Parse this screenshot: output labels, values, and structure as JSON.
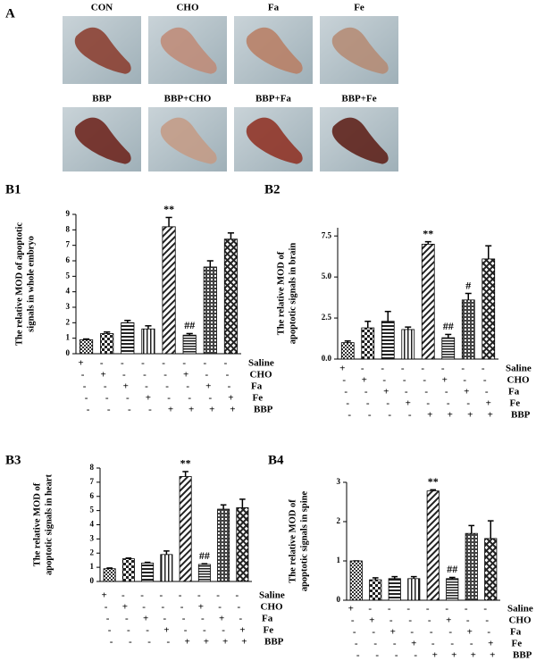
{
  "panel_a": {
    "label": "A",
    "images": [
      "CON",
      "CHO",
      "Fa",
      "Fe",
      "BBP",
      "BBP+CHO",
      "BBP+Fa",
      "BBP+Fe"
    ]
  },
  "treatments": {
    "names": [
      "Saline",
      "CHO",
      "Fa",
      "Fe",
      "BBP"
    ],
    "signs": [
      [
        "+",
        "-",
        "-",
        "-",
        "-",
        "-",
        "-",
        "-"
      ],
      [
        "-",
        "+",
        "-",
        "-",
        "-",
        "+",
        "-",
        "-"
      ],
      [
        "-",
        "-",
        "+",
        "-",
        "-",
        "-",
        "+",
        "-"
      ],
      [
        "-",
        "-",
        "-",
        "+",
        "-",
        "-",
        "-",
        "+"
      ],
      [
        "-",
        "-",
        "-",
        "-",
        "+",
        "+",
        "+",
        "+"
      ]
    ]
  },
  "chart_data": [
    {
      "type": "bar",
      "panel": "B1",
      "ylabel": [
        "The relative MOD of apoptotic",
        "signals in whole embryo"
      ],
      "values": [
        0.9,
        1.3,
        2.0,
        1.6,
        8.2,
        1.2,
        5.6,
        7.4
      ],
      "errors": [
        0.05,
        0.1,
        0.15,
        0.2,
        0.6,
        0.1,
        0.4,
        0.4
      ],
      "markers": [
        null,
        null,
        null,
        null,
        "**",
        "##",
        null,
        null
      ],
      "ylim": [
        0,
        9
      ],
      "yticks": [
        0,
        1,
        2,
        3,
        4,
        5,
        6,
        7,
        8,
        9
      ]
    },
    {
      "type": "bar",
      "panel": "B2",
      "ylabel": [
        "The relative MOD of",
        "apoptotic signals in brain"
      ],
      "values": [
        1.0,
        1.9,
        2.3,
        1.8,
        7.0,
        1.3,
        3.6,
        6.1
      ],
      "errors": [
        0.1,
        0.4,
        0.6,
        0.15,
        0.15,
        0.2,
        0.4,
        0.8
      ],
      "markers": [
        null,
        null,
        null,
        null,
        "**",
        "##",
        "#",
        null
      ],
      "ylim": [
        0,
        8
      ],
      "yticks": [
        {
          "value": 0,
          "label": "0.0"
        },
        2.5,
        {
          "value": 5,
          "label": "5.0"
        },
        7.5
      ]
    },
    {
      "type": "bar",
      "panel": "B3",
      "ylabel": [
        "The relative MOD of",
        "apoptotic  signals in heart"
      ],
      "values": [
        0.9,
        1.6,
        1.3,
        1.9,
        7.4,
        1.2,
        5.1,
        5.2
      ],
      "errors": [
        0.05,
        0.05,
        0.05,
        0.25,
        0.35,
        0.05,
        0.3,
        0.6
      ],
      "markers": [
        null,
        null,
        null,
        null,
        "**",
        "##",
        null,
        null
      ],
      "ylim": [
        0,
        8
      ],
      "yticks": [
        0,
        1,
        2,
        3,
        4,
        5,
        6,
        7,
        8
      ]
    },
    {
      "type": "bar",
      "panel": "B4",
      "ylabel": [
        "The relative MOD of",
        "apoptotic signals in spine"
      ],
      "values": [
        1.0,
        0.52,
        0.55,
        0.55,
        2.78,
        0.55,
        1.7,
        1.57
      ],
      "errors": [
        0,
        0.05,
        0.05,
        0.05,
        0.03,
        0.03,
        0.2,
        0.45
      ],
      "markers": [
        null,
        null,
        null,
        null,
        "**",
        "##",
        null,
        null
      ],
      "ylim": [
        0,
        3
      ],
      "yticks": [
        0,
        1,
        2,
        3
      ]
    }
  ]
}
